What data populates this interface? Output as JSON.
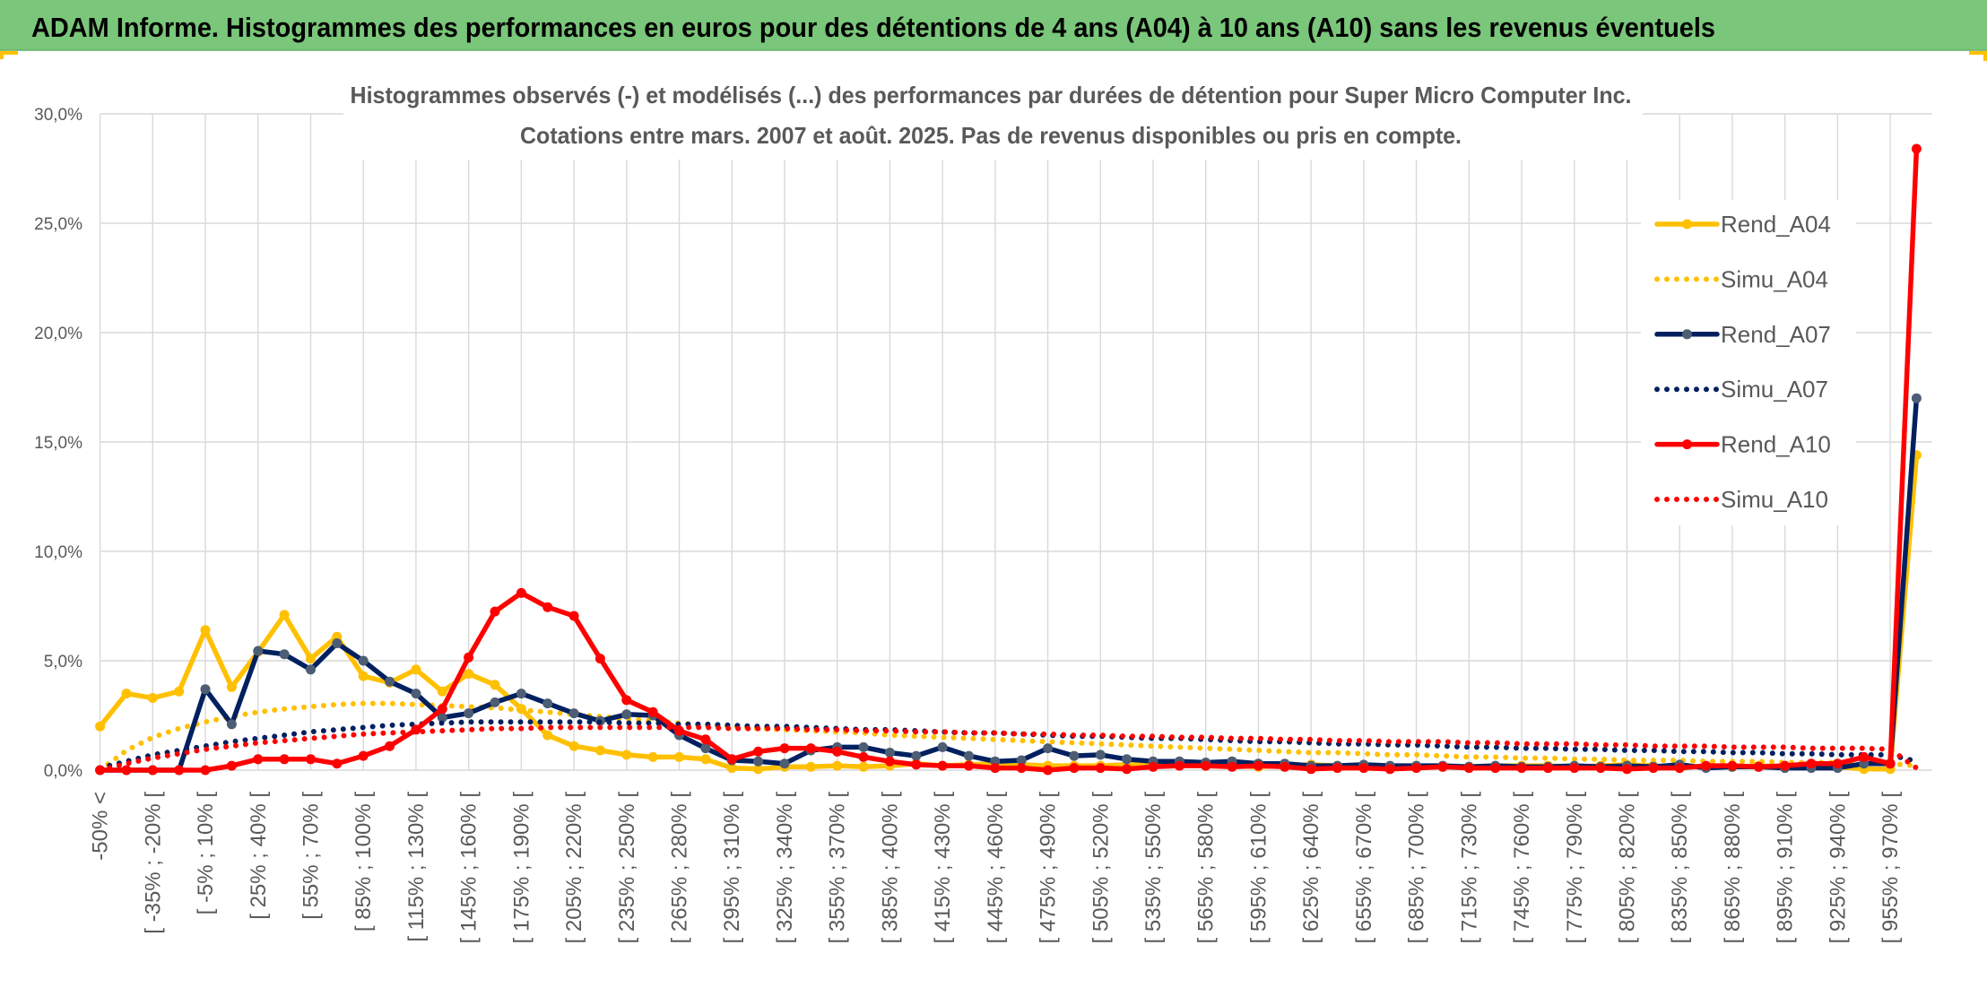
{
  "header": {
    "title": "ADAM Informe. Histogrammes des performances en euros pour des détentions de 4 ans (A04) à 10 ans (A10) sans les revenus éventuels"
  },
  "colors": {
    "header_background": "#7AC67A",
    "header_text": "#000000",
    "gridline": "#D9D9D9",
    "axis_text": "#595959",
    "frame_accent": "#FFC000"
  },
  "chart_data": {
    "type": "line",
    "title": [
      "Histogrammes observés (-) et modélisés (...) des performances par durées de détention pour Super Micro Computer Inc.",
      "Cotations entre mars. 2007 et août. 2025. Pas de revenus disponibles ou pris en compte."
    ],
    "x_tick_labels": [
      "-50% <",
      "[ -35% ; -20% [",
      "[ -5% ; 10% [",
      "[ 25% ; 40% [",
      "[ 55% ; 70% [",
      "[ 85% ; 100% [",
      "[ 115% ; 130% [",
      "[ 145% ; 160% [",
      "[ 175% ; 190% [",
      "[ 205% ; 220% [",
      "[ 235% ; 250% [",
      "[ 265% ; 280% [",
      "[ 295% ; 310% [",
      "[ 325% ; 340% [",
      "[ 355% ; 370% [",
      "[ 385% ; 400% [",
      "[ 415% ; 430% [",
      "[ 445% ; 460% [",
      "[ 475% ; 490% [",
      "[ 505% ; 520% [",
      "[ 535% ; 550% [",
      "[ 565% ; 580% [",
      "[ 595% ; 610% [",
      "[ 625% ; 640% [",
      "[ 655% ; 670% [",
      "[ 685% ; 700% [",
      "[ 715% ; 730% [",
      "[ 745% ; 760% [",
      "[ 775% ; 790% [",
      "[ 805% ; 820% [",
      "[ 835% ; 850% [",
      "[ 865% ; 880% [",
      "[ 895% ; 910% [",
      "[ 925% ; 940% [",
      "[ 955% ; 970% ["
    ],
    "y_ticks": [
      0,
      5,
      10,
      15,
      20,
      25,
      30
    ],
    "y_tick_labels": [
      "0,0%",
      "5,0%",
      "10,0%",
      "15,0%",
      "20,0%",
      "25,0%",
      "30,0%"
    ],
    "ylim": [
      0,
      30
    ],
    "y_unit": "%",
    "grid": true,
    "legend": "right",
    "series": [
      {
        "name": "Rend_A04",
        "style": "solid",
        "color": "#FFC000",
        "marker": "circle",
        "marker_color": "#FFC000",
        "values": [
          2.0,
          3.5,
          3.3,
          3.6,
          6.4,
          3.8,
          5.4,
          7.1,
          5.1,
          6.1,
          4.3,
          4.0,
          4.6,
          3.6,
          4.4,
          3.9,
          2.8,
          1.6,
          1.1,
          0.9,
          0.7,
          0.6,
          0.6,
          0.5,
          0.1,
          0.05,
          0.15,
          0.15,
          0.2,
          0.15,
          0.2,
          0.3,
          0.2,
          0.25,
          0.3,
          0.25,
          0.2,
          0.2,
          0.2,
          0.25,
          0.3,
          0.25,
          0.2,
          0.2,
          0.15,
          0.2,
          0.25,
          0.2,
          0.2,
          0.15,
          0.2,
          0.15,
          0.15,
          0.2,
          0.2,
          0.2,
          0.15,
          0.2,
          0.25,
          0.2,
          0.1,
          0.2,
          0.15,
          0.2,
          0.15,
          0.2,
          0.15,
          0.05,
          0.05,
          14.4
        ]
      },
      {
        "name": "Simu_A04",
        "style": "dotted",
        "color": "#FFC000",
        "values": [
          0.0,
          0.9,
          1.5,
          1.9,
          2.2,
          2.45,
          2.65,
          2.8,
          2.9,
          3.0,
          3.05,
          3.05,
          3.0,
          2.95,
          2.9,
          2.85,
          2.75,
          2.65,
          2.55,
          2.45,
          2.35,
          2.25,
          2.15,
          2.05,
          2.0,
          1.9,
          1.85,
          1.8,
          1.75,
          1.7,
          1.6,
          1.55,
          1.5,
          1.45,
          1.4,
          1.35,
          1.3,
          1.25,
          1.2,
          1.15,
          1.1,
          1.05,
          1.0,
          0.95,
          0.9,
          0.85,
          0.8,
          0.8,
          0.75,
          0.7,
          0.7,
          0.65,
          0.6,
          0.6,
          0.55,
          0.55,
          0.5,
          0.5,
          0.45,
          0.45,
          0.45,
          0.4,
          0.4,
          0.4,
          0.35,
          0.35,
          0.35,
          0.3,
          0.3,
          0.2
        ]
      },
      {
        "name": "Rend_A07",
        "style": "solid",
        "color": "#002060",
        "marker": "circle",
        "marker_color": "#4D5D73",
        "values": [
          0.0,
          0.0,
          0.0,
          0.0,
          3.7,
          2.1,
          5.45,
          5.3,
          4.6,
          5.8,
          5.0,
          4.05,
          3.5,
          2.4,
          2.6,
          3.1,
          3.5,
          3.05,
          2.6,
          2.25,
          2.55,
          2.5,
          1.6,
          1.0,
          0.45,
          0.4,
          0.3,
          0.9,
          1.05,
          1.05,
          0.8,
          0.65,
          1.05,
          0.65,
          0.4,
          0.45,
          1.0,
          0.65,
          0.7,
          0.5,
          0.4,
          0.4,
          0.35,
          0.4,
          0.3,
          0.3,
          0.2,
          0.2,
          0.25,
          0.2,
          0.2,
          0.2,
          0.15,
          0.2,
          0.15,
          0.15,
          0.2,
          0.15,
          0.2,
          0.15,
          0.25,
          0.1,
          0.15,
          0.15,
          0.1,
          0.1,
          0.1,
          0.3,
          0.3,
          17.0
        ]
      },
      {
        "name": "Simu_A07",
        "style": "dotted",
        "color": "#002060",
        "values": [
          0.1,
          0.4,
          0.7,
          0.9,
          1.1,
          1.3,
          1.45,
          1.6,
          1.75,
          1.85,
          1.95,
          2.05,
          2.1,
          2.15,
          2.2,
          2.2,
          2.2,
          2.2,
          2.2,
          2.2,
          2.15,
          2.15,
          2.1,
          2.1,
          2.05,
          2.0,
          2.0,
          1.95,
          1.9,
          1.85,
          1.85,
          1.8,
          1.75,
          1.7,
          1.7,
          1.65,
          1.6,
          1.55,
          1.55,
          1.5,
          1.45,
          1.45,
          1.4,
          1.35,
          1.3,
          1.3,
          1.25,
          1.2,
          1.2,
          1.15,
          1.15,
          1.1,
          1.05,
          1.05,
          1.0,
          1.0,
          0.95,
          0.95,
          0.9,
          0.9,
          0.85,
          0.85,
          0.8,
          0.8,
          0.75,
          0.75,
          0.7,
          0.7,
          0.7,
          0.4
        ]
      },
      {
        "name": "Rend_A10",
        "style": "solid",
        "color": "#FF0000",
        "marker": "circle",
        "marker_color": "#FF0000",
        "values": [
          0.0,
          0.0,
          0.0,
          0.0,
          0.0,
          0.2,
          0.5,
          0.5,
          0.5,
          0.3,
          0.65,
          1.1,
          1.85,
          2.8,
          5.15,
          7.25,
          8.1,
          7.45,
          7.05,
          5.1,
          3.2,
          2.65,
          1.8,
          1.4,
          0.5,
          0.85,
          1.0,
          1.0,
          0.85,
          0.6,
          0.4,
          0.25,
          0.2,
          0.2,
          0.1,
          0.1,
          0.0,
          0.1,
          0.1,
          0.05,
          0.15,
          0.2,
          0.2,
          0.15,
          0.2,
          0.15,
          0.05,
          0.1,
          0.1,
          0.05,
          0.1,
          0.15,
          0.1,
          0.1,
          0.1,
          0.1,
          0.1,
          0.1,
          0.05,
          0.1,
          0.1,
          0.2,
          0.2,
          0.15,
          0.2,
          0.3,
          0.3,
          0.6,
          0.3,
          28.4
        ]
      },
      {
        "name": "Simu_A10",
        "style": "dotted",
        "color": "#FF0000",
        "values": [
          0.0,
          0.3,
          0.55,
          0.75,
          0.95,
          1.1,
          1.25,
          1.35,
          1.45,
          1.55,
          1.65,
          1.7,
          1.75,
          1.8,
          1.85,
          1.9,
          1.9,
          1.95,
          1.95,
          1.95,
          1.95,
          1.95,
          1.95,
          1.95,
          1.9,
          1.9,
          1.9,
          1.85,
          1.85,
          1.8,
          1.8,
          1.75,
          1.75,
          1.7,
          1.7,
          1.65,
          1.65,
          1.6,
          1.6,
          1.55,
          1.55,
          1.5,
          1.5,
          1.45,
          1.45,
          1.4,
          1.4,
          1.35,
          1.35,
          1.3,
          1.3,
          1.3,
          1.25,
          1.25,
          1.2,
          1.2,
          1.2,
          1.15,
          1.15,
          1.1,
          1.1,
          1.1,
          1.05,
          1.05,
          1.05,
          1.0,
          1.0,
          1.0,
          0.95,
          0.1
        ]
      }
    ]
  }
}
